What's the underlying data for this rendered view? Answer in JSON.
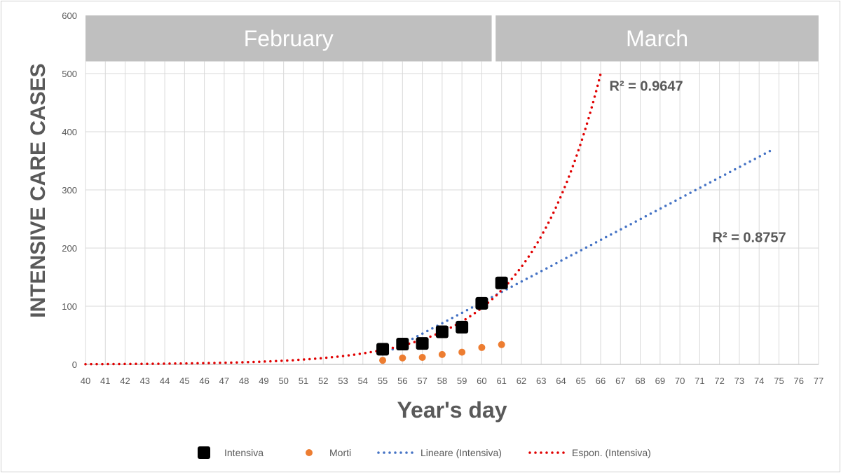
{
  "chart_data": {
    "type": "scatter",
    "title": "",
    "xlabel": "Year's day",
    "ylabel": "INTENSIVE CARE CASES",
    "xlim": [
      40,
      77
    ],
    "ylim": [
      0,
      600
    ],
    "x_ticks": [
      40,
      41,
      42,
      43,
      44,
      45,
      46,
      47,
      48,
      49,
      50,
      51,
      52,
      53,
      54,
      55,
      56,
      57,
      58,
      59,
      60,
      61,
      62,
      63,
      64,
      65,
      66,
      67,
      68,
      69,
      70,
      71,
      72,
      73,
      74,
      75,
      76,
      77
    ],
    "y_ticks": [
      0,
      100,
      200,
      300,
      400,
      500,
      600
    ],
    "grid": true,
    "month_bands": [
      {
        "label": "February",
        "x_start": 40,
        "x_end": 60.5
      },
      {
        "label": "March",
        "x_start": 60.7,
        "x_end": 77
      }
    ],
    "series": [
      {
        "name": "Intensiva",
        "kind": "marker-square",
        "color": "#000000",
        "x": [
          55,
          56,
          57,
          58,
          59,
          60,
          61
        ],
        "y": [
          26,
          35,
          36,
          56,
          64,
          105,
          140
        ]
      },
      {
        "name": "Morti",
        "kind": "marker-circle",
        "color": "#ed7d31",
        "x": [
          55,
          56,
          57,
          58,
          59,
          60,
          61
        ],
        "y": [
          7,
          11,
          12,
          17,
          21,
          29,
          34
        ]
      },
      {
        "name": "Lineare (Intensiva)",
        "kind": "trend-linear",
        "color": "#4472c4",
        "x_range": [
          55,
          74.7
        ],
        "y_at_start": 17,
        "slope": 17.9
      },
      {
        "name": "Espon. (Intensiva)",
        "kind": "trend-exponential",
        "color": "#e00000",
        "x_range": [
          40,
          66
        ],
        "y_at_start": 24.8,
        "rate": 0.273,
        "start_x": 55
      }
    ],
    "annotations": [
      {
        "text": "R² = 0.9647",
        "x": 68.3,
        "y": 480
      },
      {
        "text": "R² = 0.8757",
        "x": 73.5,
        "y": 220
      }
    ],
    "legend_position": "bottom"
  }
}
